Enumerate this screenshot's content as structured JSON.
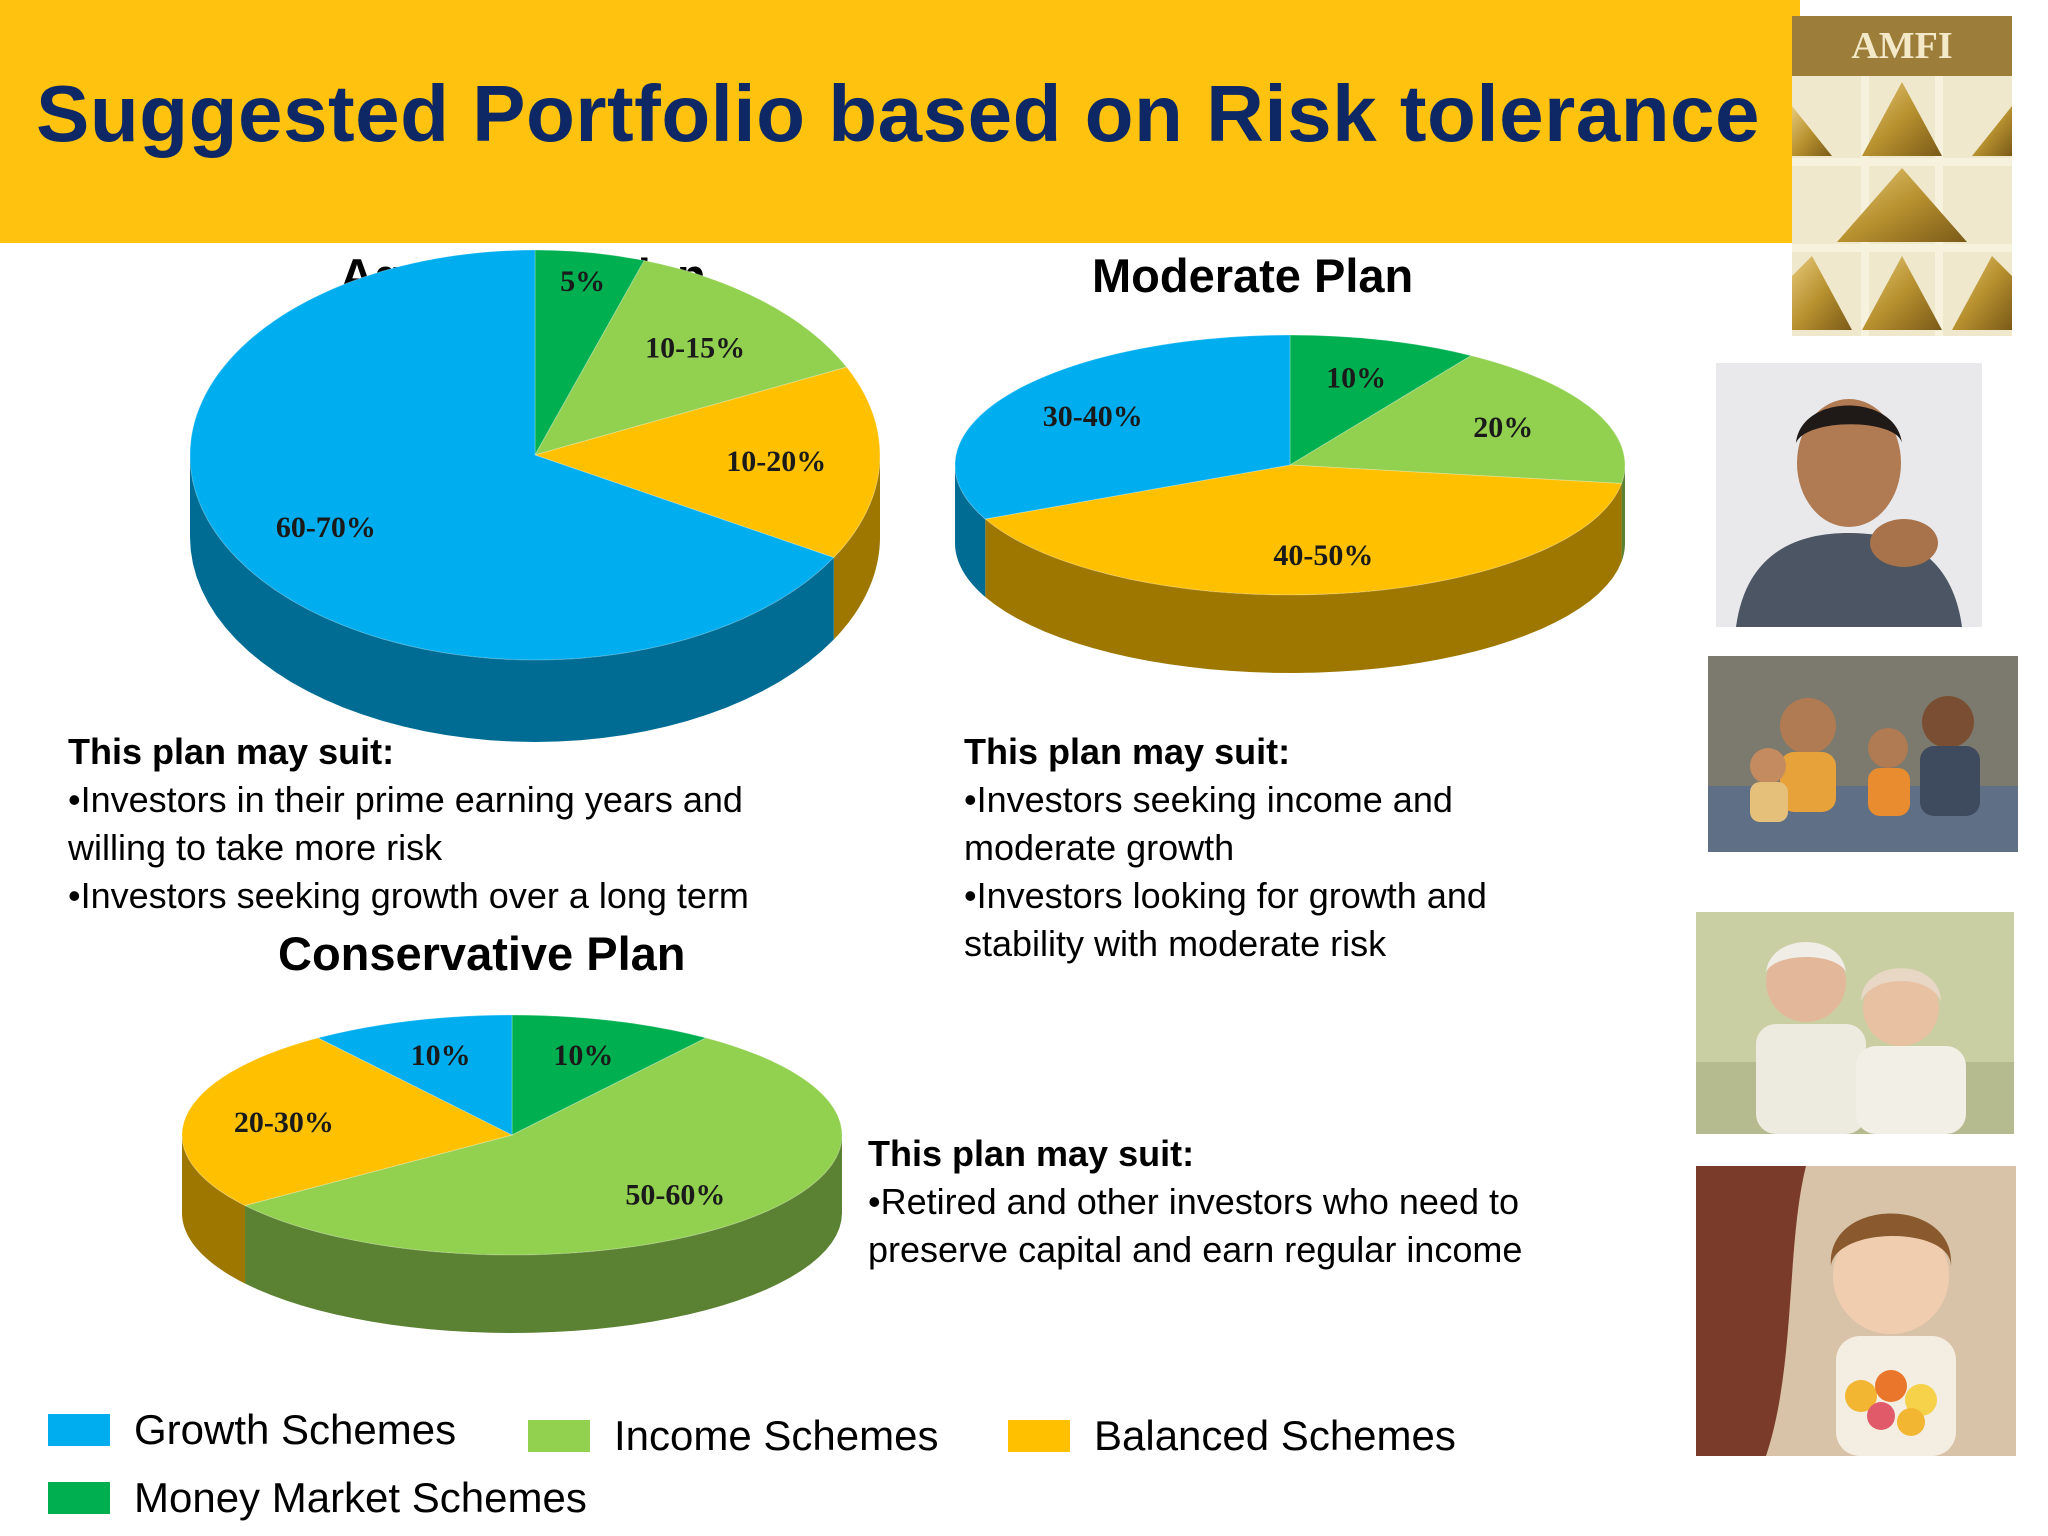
{
  "header": {
    "title": "Suggested Portfolio based on Risk tolerance"
  },
  "logo": {
    "text": "AMFI"
  },
  "colors": {
    "growth": "#00AEEF",
    "income": "#92D050",
    "balanced": "#FFC000",
    "money_market": "#00B050",
    "banner": "#FFC20E",
    "title": "#0E2866"
  },
  "legend": {
    "growth": "Growth Schemes",
    "income": "Income Schemes",
    "balanced": "Balanced Schemes",
    "money_market": "Money Market Schemes"
  },
  "chart_data": [
    {
      "type": "pie",
      "title": "Aggressive  Plan",
      "slices": [
        {
          "category": "Money Market Schemes",
          "label": "5%",
          "value": 5
        },
        {
          "category": "Income Schemes",
          "label": "10-15%",
          "value": 12.5
        },
        {
          "category": "Balanced Schemes",
          "label": "10-20%",
          "value": 15
        },
        {
          "category": "Growth Schemes",
          "label": "60-70%",
          "value": 65
        }
      ]
    },
    {
      "type": "pie",
      "title": "Moderate Plan",
      "slices": [
        {
          "category": "Money Market Schemes",
          "label": "10%",
          "value": 10
        },
        {
          "category": "Income Schemes",
          "label": "20%",
          "value": 20
        },
        {
          "category": "Balanced Schemes",
          "label": "40-50%",
          "value": 45
        },
        {
          "category": "Growth Schemes",
          "label": "30-40%",
          "value": 35
        }
      ]
    },
    {
      "type": "pie",
      "title": "Conservative Plan",
      "slices": [
        {
          "category": "Money Market Schemes",
          "label": "10%",
          "value": 10
        },
        {
          "category": "Income Schemes",
          "label": "50-60%",
          "value": 55
        },
        {
          "category": "Balanced Schemes",
          "label": "20-30%",
          "value": 25
        },
        {
          "category": "Growth Schemes",
          "label": "10%",
          "value": 10
        }
      ]
    }
  ],
  "suitability": {
    "aggressive": {
      "heading": "This plan may suit:",
      "lines": [
        "•Investors in their prime earning years and",
        "willing to take more risk",
        "•Investors seeking growth over a long term"
      ]
    },
    "moderate": {
      "heading": "This plan may suit:",
      "lines": [
        "•Investors seeking income and",
        "moderate growth",
        "•Investors looking for growth and",
        "stability with moderate risk"
      ]
    },
    "conservative": {
      "heading": "This plan may suit:",
      "lines": [
        "•Retired and other investors who need to",
        "preserve capital and earn regular income"
      ]
    }
  }
}
